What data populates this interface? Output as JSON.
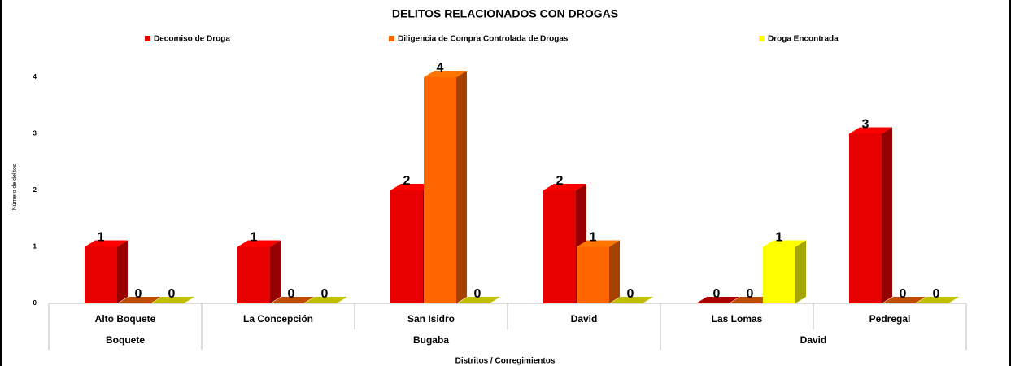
{
  "chart_data": {
    "type": "bar3d",
    "title": "DELITOS RELACIONADOS CON DROGAS",
    "y_label": "Número de delitos",
    "x_label": "Distritos / Corregimientos",
    "categories": [
      "Alto Boquete",
      "La Concepción",
      "San Isidro",
      "David",
      "Las Lomas",
      "Pedregal"
    ],
    "groups": [
      {
        "name": "Boquete",
        "size": 1
      },
      {
        "name": "Bugaba",
        "size": 3
      },
      {
        "name": "David",
        "size": 2
      }
    ],
    "series": [
      {
        "name": "Decomiso de Droga",
        "color": "#e60000",
        "values": [
          1,
          1,
          2,
          2,
          0,
          3
        ]
      },
      {
        "name": "Diligencia de Compra Controlada de Drogas",
        "color": "#ff6600",
        "values": [
          0,
          0,
          4,
          1,
          0,
          0
        ]
      },
      {
        "name": "Droga Encontrada",
        "color": "#ffff00",
        "values": [
          0,
          0,
          0,
          0,
          1,
          0
        ]
      }
    ],
    "ylim": [
      0,
      4
    ],
    "yticks": [
      0,
      1,
      2,
      3,
      4
    ],
    "legend": "top"
  }
}
